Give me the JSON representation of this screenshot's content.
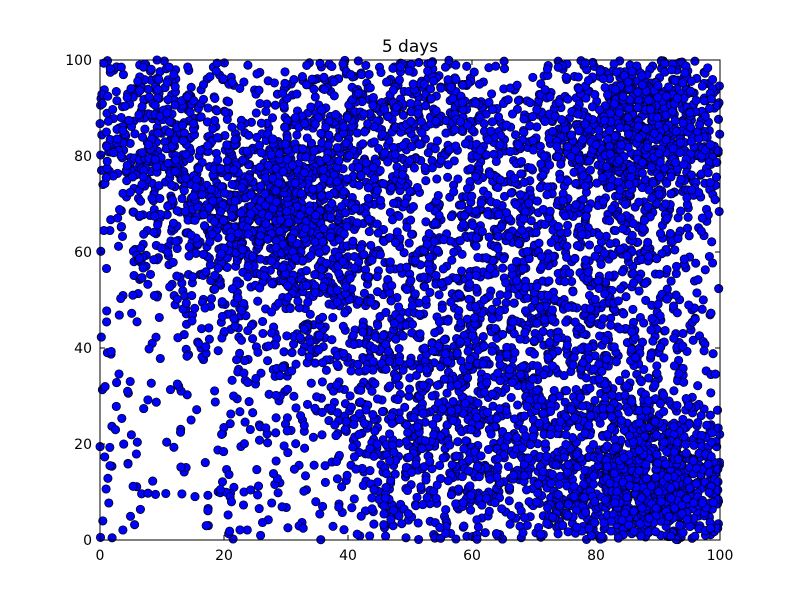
{
  "chart_data": {
    "type": "scatter",
    "title": "5 days",
    "xlabel": "",
    "ylabel": "",
    "xlim": [
      0,
      100
    ],
    "ylim": [
      0,
      100
    ],
    "xticks": [
      0,
      20,
      40,
      60,
      80,
      100
    ],
    "yticks": [
      0,
      20,
      40,
      60,
      80,
      100
    ],
    "grid": false,
    "marker_color": "#0000ff",
    "marker_edge_color": "#000000",
    "series": [
      {
        "points_described": "dense uniform-ish random scatter with clusters",
        "clusters": [
          {
            "cx": 28,
            "cy": 68,
            "sx": 9,
            "sy": 9,
            "n": 900
          },
          {
            "cx": 88,
            "cy": 12,
            "sx": 9,
            "sy": 9,
            "n": 1100
          },
          {
            "cx": 88,
            "cy": 85,
            "sx": 9,
            "sy": 10,
            "n": 900
          },
          {
            "cx": 75,
            "cy": 40,
            "sx": 12,
            "sy": 14,
            "n": 600
          },
          {
            "cx": 50,
            "cy": 88,
            "sx": 14,
            "sy": 8,
            "n": 500
          },
          {
            "cx": 55,
            "cy": 20,
            "sx": 10,
            "sy": 12,
            "n": 500
          },
          {
            "cx": 8,
            "cy": 85,
            "sx": 6,
            "sy": 10,
            "n": 350
          },
          {
            "cx": 40,
            "cy": 45,
            "sx": 14,
            "sy": 12,
            "n": 400
          },
          {
            "cx": 65,
            "cy": 65,
            "sx": 14,
            "sy": 12,
            "n": 400
          }
        ],
        "background_n": 1200
      }
    ]
  }
}
